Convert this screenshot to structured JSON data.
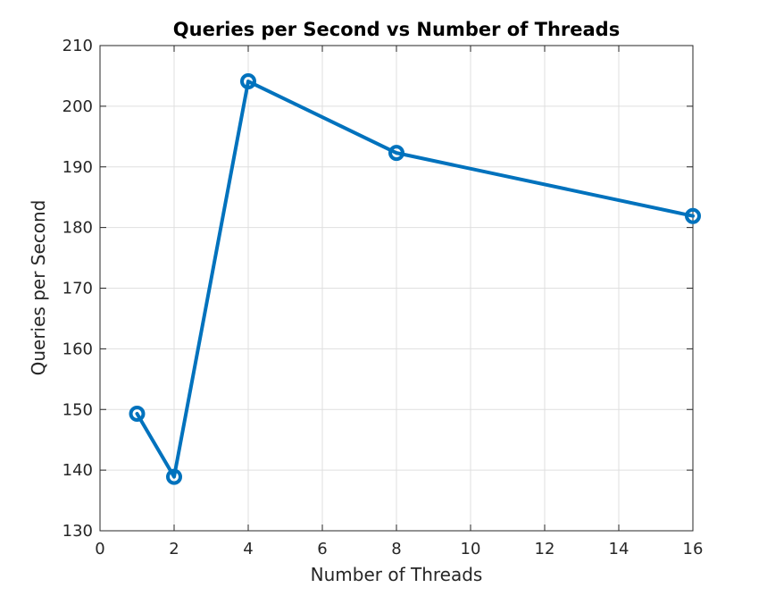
{
  "chart_data": {
    "type": "line",
    "title": "Queries per Second vs Number of Threads",
    "xlabel": "Number of Threads",
    "ylabel": "Queries per Second",
    "xlim": [
      0,
      16
    ],
    "ylim": [
      130,
      210
    ],
    "xticks": [
      0,
      2,
      4,
      6,
      8,
      10,
      12,
      14,
      16
    ],
    "yticks": [
      130,
      140,
      150,
      160,
      170,
      180,
      190,
      200,
      210
    ],
    "grid": true,
    "series": [
      {
        "x": [
          1,
          2,
          4,
          8,
          16
        ],
        "values": [
          149.3,
          138.9,
          204.1,
          192.3,
          181.9
        ],
        "color": "#0072bd",
        "marker": "circle"
      }
    ]
  }
}
